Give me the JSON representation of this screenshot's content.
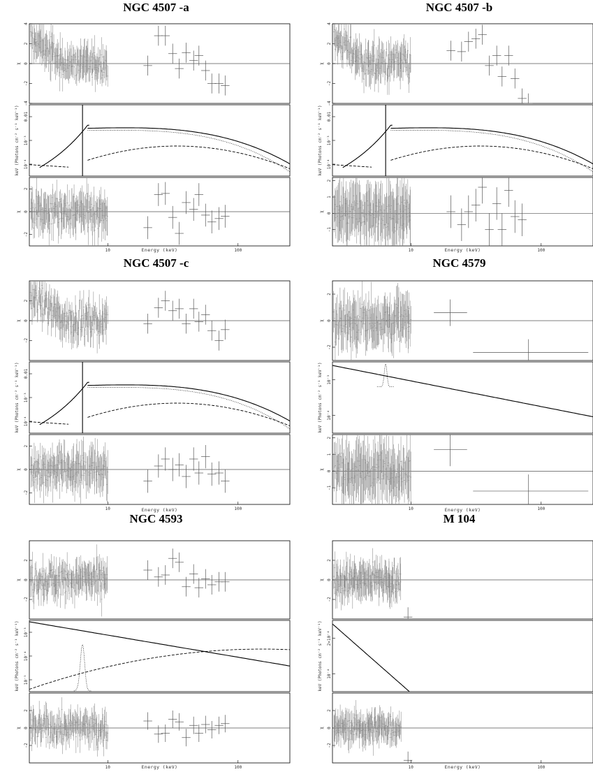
{
  "chart_data": [
    {
      "type": "scatter",
      "title": "NGC 4507 -a",
      "xlabel": "Energy (keV)",
      "x_log": true,
      "xlim": [
        2.5,
        250
      ],
      "x_ticks": [
        "10",
        "100"
      ],
      "top": {
        "ylabel": "χ",
        "ylim": [
          -4,
          4
        ],
        "ticks": [
          "4",
          "2",
          "0",
          "-2",
          "-4"
        ],
        "low_scatter": 1.2,
        "points": [
          [
            20.3,
            -0.2
          ],
          [
            24.5,
            2.8
          ],
          [
            27.7,
            2.8
          ],
          [
            31.5,
            1.0
          ],
          [
            35.4,
            -0.5
          ],
          [
            40.0,
            1.1
          ],
          [
            45.6,
            0.3
          ],
          [
            50.1,
            0.8
          ],
          [
            56.3,
            -0.7
          ],
          [
            62.9,
            -2.0
          ],
          [
            71.5,
            -2.0
          ],
          [
            79.6,
            -2.2
          ]
        ]
      },
      "model": {
        "ylabel": "keV (Photons cm⁻² s⁻¹ keV⁻¹)",
        "ticks": [
          "0.01",
          "10⁻³",
          "10⁻⁴"
        ],
        "line_keV": 6.4,
        "curves": [
          "total",
          "reflection",
          "transmitted",
          "scattered"
        ]
      },
      "bottom": {
        "ylabel": "χ",
        "ylim": [
          -3,
          3
        ],
        "ticks": [
          "2",
          "0",
          "-2"
        ],
        "low_scatter": 1.2,
        "points": [
          [
            20.3,
            -1.4
          ],
          [
            24.5,
            1.5
          ],
          [
            27.7,
            1.6
          ],
          [
            31.5,
            -0.5
          ],
          [
            35.4,
            -1.9
          ],
          [
            40.0,
            0.8
          ],
          [
            45.6,
            0.2
          ],
          [
            50.1,
            1.5
          ],
          [
            56.3,
            -0.3
          ],
          [
            62.9,
            -0.9
          ],
          [
            71.5,
            -0.6
          ],
          [
            79.6,
            -0.4
          ]
        ]
      }
    },
    {
      "type": "scatter",
      "title": "NGC 4507 -b",
      "xlabel": "Energy (keV)",
      "x_log": true,
      "xlim": [
        2.5,
        250
      ],
      "x_ticks": [
        "10",
        "100"
      ],
      "top": {
        "ylabel": "χ",
        "ylim": [
          -4,
          4
        ],
        "ticks": [
          "4",
          "2",
          "0",
          "-2",
          "-4"
        ],
        "low_scatter": 1.4,
        "points": [
          [
            20.3,
            1.3
          ],
          [
            24.5,
            1.2
          ],
          [
            27.7,
            2.2
          ],
          [
            31.5,
            2.5
          ],
          [
            35.4,
            2.9
          ],
          [
            40.0,
            -0.2
          ],
          [
            45.6,
            0.8
          ],
          [
            50.1,
            -1.3
          ],
          [
            56.3,
            0.8
          ],
          [
            62.9,
            -1.5
          ],
          [
            71.5,
            -3.5
          ],
          [
            79.6,
            -4.0
          ]
        ]
      },
      "model": {
        "ylabel": "keV (Photons cm⁻² s⁻¹ keV⁻¹)",
        "ticks": [
          "0.01",
          "10⁻³",
          "10⁻⁴"
        ],
        "line_keV": 6.4,
        "curves": [
          "total",
          "reflection",
          "transmitted",
          "scattered"
        ]
      },
      "bottom": {
        "ylabel": "χ",
        "ylim": [
          -2,
          2.2
        ],
        "ticks": [
          "2",
          "1",
          "0",
          "-1"
        ],
        "low_scatter": 0.9,
        "points": [
          [
            20.3,
            0.1
          ],
          [
            24.5,
            -0.7
          ],
          [
            27.7,
            0.1
          ],
          [
            31.5,
            0.5
          ],
          [
            35.4,
            1.6
          ],
          [
            40.0,
            -1.0
          ],
          [
            45.6,
            0.6
          ],
          [
            50.1,
            -1.0
          ],
          [
            56.3,
            1.4
          ],
          [
            62.9,
            -0.2
          ],
          [
            71.5,
            -0.4
          ]
        ]
      }
    },
    {
      "type": "scatter",
      "title": "NGC 4507 -c",
      "xlabel": "Energy (keV)",
      "x_log": true,
      "xlim": [
        2.5,
        250
      ],
      "x_ticks": [
        "10",
        "100"
      ],
      "top": {
        "ylabel": "χ",
        "ylim": [
          -4,
          4
        ],
        "ticks": [
          "2",
          "0",
          "-2"
        ],
        "low_scatter": 1.3,
        "points": [
          [
            20.3,
            -0.3
          ],
          [
            24.5,
            1.3
          ],
          [
            27.7,
            2.0
          ],
          [
            31.5,
            1.0
          ],
          [
            35.4,
            1.2
          ],
          [
            40.0,
            -0.3
          ],
          [
            45.6,
            1.2
          ],
          [
            50.1,
            -0.1
          ],
          [
            56.3,
            0.6
          ],
          [
            62.9,
            -1.0
          ],
          [
            71.5,
            -2.0
          ],
          [
            79.6,
            -0.9
          ]
        ]
      },
      "model": {
        "ylabel": "keV (Photons cm⁻² s⁻¹ keV⁻¹)",
        "ticks": [
          "0.01",
          "10⁻³",
          "10⁻⁴"
        ],
        "line_keV": 6.4,
        "curves": [
          "total",
          "reflection",
          "transmitted",
          "scattered"
        ]
      },
      "bottom": {
        "ylabel": "χ",
        "ylim": [
          -3,
          3
        ],
        "ticks": [
          "2",
          "0",
          "-2"
        ],
        "low_scatter": 1.2,
        "points": [
          [
            20.3,
            -1.0
          ],
          [
            24.5,
            0.3
          ],
          [
            27.7,
            0.9
          ],
          [
            31.5,
            0.0
          ],
          [
            35.4,
            0.4
          ],
          [
            40.0,
            -0.6
          ],
          [
            45.6,
            0.9
          ],
          [
            50.1,
            -0.3
          ],
          [
            56.3,
            1.1
          ],
          [
            62.9,
            -0.4
          ],
          [
            71.5,
            -0.3
          ],
          [
            79.6,
            -1.0
          ]
        ]
      }
    },
    {
      "type": "scatter",
      "title": "NGC 4579",
      "xlabel": "Energy (keV)",
      "x_log": true,
      "xlim": [
        2.5,
        250
      ],
      "x_ticks": [
        "10",
        "100"
      ],
      "top": {
        "ylabel": "χ",
        "ylim": [
          -3,
          3
        ],
        "ticks": [
          "2",
          "0",
          "-2"
        ],
        "low_scatter": 1.2,
        "points": [
          [
            20,
            0.6
          ],
          [
            80,
            -2.4
          ]
        ],
        "xerr": [
          [
            15,
            27
          ],
          [
            30,
            230
          ]
        ]
      },
      "model": {
        "ylabel": "keV (Photons cm⁻² s⁻¹ keV⁻¹)",
        "ticks": [
          "10⁻³",
          "10⁻⁴"
        ],
        "line_keV": 6.4,
        "curves": [
          "total",
          "power-law",
          "iron-line"
        ]
      },
      "bottom": {
        "ylabel": "χ",
        "ylim": [
          -2,
          2.2
        ],
        "ticks": [
          "2",
          "1",
          "0",
          "-1"
        ],
        "low_scatter": 0.9,
        "points": [
          [
            20,
            1.3
          ],
          [
            80,
            -1.2
          ]
        ],
        "xerr": [
          [
            15,
            27
          ],
          [
            30,
            230
          ]
        ]
      }
    },
    {
      "type": "scatter",
      "title": "NGC 4593",
      "xlabel": "Energy (keV)",
      "x_log": true,
      "xlim": [
        2.5,
        250
      ],
      "x_ticks": [
        "10",
        "100"
      ],
      "top": {
        "ylabel": "χ",
        "ylim": [
          -4,
          4
        ],
        "ticks": [
          "2",
          "0",
          "-2"
        ],
        "low_scatter": 1.4,
        "points": [
          [
            20.3,
            1.0
          ],
          [
            24.5,
            0.3
          ],
          [
            27.7,
            0.5
          ],
          [
            31.5,
            2.2
          ],
          [
            35.4,
            1.8
          ],
          [
            40.0,
            -0.7
          ],
          [
            45.6,
            0.6
          ],
          [
            50.1,
            -0.8
          ],
          [
            56.3,
            0.1
          ],
          [
            62.9,
            -0.5
          ],
          [
            71.5,
            -0.2
          ],
          [
            79.6,
            -0.2
          ]
        ]
      },
      "model": {
        "ylabel": "keV (Photons cm⁻² s⁻¹ keV⁻¹)",
        "ticks": [
          "10⁻³",
          "10⁻⁴",
          "10⁻⁵"
        ],
        "line_keV": 6.4,
        "curves": [
          "total",
          "power-law",
          "reflection",
          "iron-line"
        ]
      },
      "bottom": {
        "ylabel": "χ",
        "ylim": [
          -4,
          4
        ],
        "ticks": [
          "2",
          "0",
          "-2"
        ],
        "low_scatter": 1.3,
        "points": [
          [
            20.3,
            0.8
          ],
          [
            24.5,
            -0.7
          ],
          [
            27.7,
            -0.6
          ],
          [
            31.5,
            1.0
          ],
          [
            35.4,
            0.7
          ],
          [
            40.0,
            -1.1
          ],
          [
            45.6,
            0.3
          ],
          [
            50.1,
            -0.6
          ],
          [
            56.3,
            0.4
          ],
          [
            62.9,
            -0.2
          ],
          [
            71.5,
            0.3
          ],
          [
            79.6,
            0.5
          ]
        ]
      }
    },
    {
      "type": "scatter",
      "title": "M 104",
      "xlabel": "Energy (keV)",
      "x_log": true,
      "xlim": [
        2.5,
        250
      ],
      "x_ticks": [
        "10",
        "100"
      ],
      "top": {
        "ylabel": "χ",
        "ylim": [
          -4,
          4
        ],
        "ticks": [
          "2",
          "0",
          "-2"
        ],
        "low_scatter": 1.2,
        "low_xmax": 8.4,
        "points": [
          [
            9.5,
            -3.8
          ]
        ]
      },
      "model": {
        "ylabel": "keV (Photons cm⁻² s⁻¹ keV⁻¹)",
        "ticks": [
          "2×10⁻⁴",
          "10⁻⁴"
        ],
        "curves": [
          "power-law"
        ]
      },
      "bottom": {
        "ylabel": "χ",
        "ylim": [
          -4,
          4
        ],
        "ticks": [
          "2",
          "0",
          "-2"
        ],
        "low_scatter": 1.2,
        "low_xmax": 8.4,
        "points": [
          [
            9.5,
            -3.7
          ]
        ]
      }
    }
  ]
}
